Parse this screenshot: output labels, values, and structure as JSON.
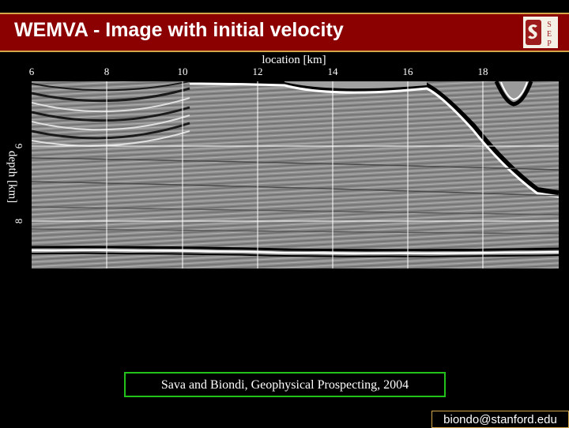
{
  "slide": {
    "title": "WEMVA - Image with initial velocity",
    "citation": "Sava and Biondi, Geophysical Prospecting, 2004",
    "footer_email": "biondo@stanford.edu"
  },
  "figure": {
    "xlabel": "location [km]",
    "ylabel": "depth [km]",
    "x_ticks": [
      "6",
      "8",
      "10",
      "12",
      "14",
      "16",
      "18"
    ],
    "y_ticks": [
      "6",
      "8"
    ]
  },
  "colors": {
    "title_bg": "#8b0000",
    "title_border": "#d4a64a",
    "citation_border": "#22c21a",
    "logo_red": "#9e1b1b"
  },
  "icons": {
    "logo": "stanford-seg-logo"
  }
}
